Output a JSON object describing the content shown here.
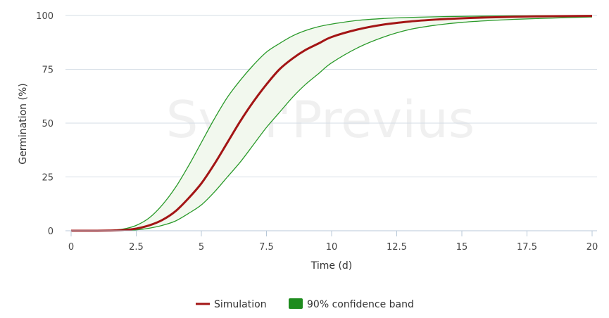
{
  "chart_data": {
    "type": "line",
    "title": "",
    "xlabel": "Time (d)",
    "ylabel": "Germination (%)",
    "xlim": [
      0,
      20
    ],
    "ylim": [
      0,
      100
    ],
    "xticks": [
      "0",
      "2.5",
      "5",
      "7.5",
      "10",
      "12.5",
      "15",
      "17.5",
      "20"
    ],
    "yticks": [
      "0",
      "25",
      "50",
      "75",
      "100"
    ],
    "grid": "horizontal",
    "legend_position": "bottom-center",
    "watermark": "Sym'Previus",
    "colors": {
      "simulation": "#a31515",
      "band_line": "#2a9a2a",
      "band_fill": "#f2f8ee",
      "legend_band": "#1e8c1e",
      "grid": "#d5dde6",
      "axis": "#b8c8d8"
    },
    "x": [
      0,
      1,
      1.5,
      2,
      2.5,
      3,
      3.5,
      4,
      4.5,
      5,
      5.5,
      6,
      6.5,
      7,
      7.5,
      8,
      8.5,
      9,
      9.5,
      10,
      11,
      12,
      13,
      14,
      15,
      16,
      17,
      18,
      19,
      20
    ],
    "series": [
      {
        "name": "Simulation",
        "role": "line",
        "values": [
          0,
          0,
          0.1,
          0.3,
          1,
          2.5,
          5,
          9,
          15,
          22,
          31,
          41,
          51,
          60,
          68,
          75,
          80,
          84,
          87,
          90,
          93.5,
          95.8,
          97.2,
          98.1,
          98.7,
          99.1,
          99.4,
          99.6,
          99.7,
          99.8
        ]
      },
      {
        "name": "90% confidence band",
        "role": "band",
        "lower": [
          0,
          0,
          0,
          0.1,
          0.4,
          1.2,
          2.5,
          4.5,
          8,
          12,
          18,
          25,
          32,
          40,
          48,
          55,
          62,
          68,
          73,
          78,
          85,
          90,
          93.5,
          95.5,
          96.8,
          97.6,
          98.2,
          98.6,
          99.0,
          99.3
        ],
        "upper": [
          0,
          0,
          0.2,
          0.8,
          2.5,
          6,
          12,
          20,
          30,
          41,
          52,
          62,
          70,
          77,
          83,
          87,
          90.5,
          93,
          94.8,
          96,
          97.7,
          98.6,
          99.1,
          99.4,
          99.6,
          99.75,
          99.85,
          99.9,
          99.95,
          100
        ]
      }
    ]
  }
}
